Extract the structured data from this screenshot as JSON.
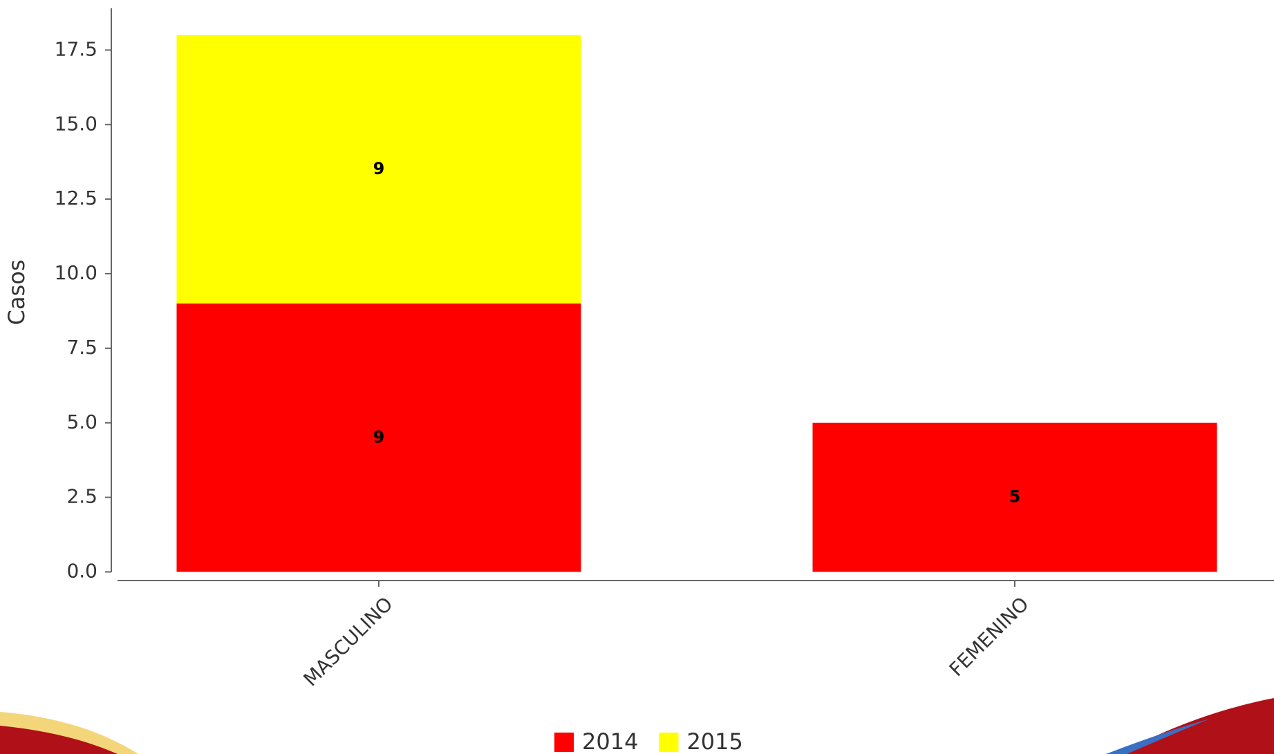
{
  "chart_data": {
    "type": "bar",
    "stacked": true,
    "y_label": "Casos",
    "categories": [
      "MASCULINO",
      "FEMENINO"
    ],
    "series": [
      {
        "name": "2014",
        "color": "#ff0000",
        "values": [
          9,
          5
        ]
      },
      {
        "name": "2015",
        "color": "#ffff00",
        "values": [
          9,
          null
        ]
      }
    ],
    "ylim": [
      0,
      18.9
    ],
    "yticks": [
      {
        "value": 0,
        "label": "0.0"
      },
      {
        "value": 2.5,
        "label": "2.5"
      },
      {
        "value": 5,
        "label": "5.0"
      },
      {
        "value": 7.5,
        "label": "7.5"
      },
      {
        "value": 10,
        "label": "10.0"
      },
      {
        "value": 12.5,
        "label": "12.5"
      },
      {
        "value": 15,
        "label": "15.0"
      },
      {
        "value": 17.5,
        "label": "17.5"
      }
    ]
  }
}
